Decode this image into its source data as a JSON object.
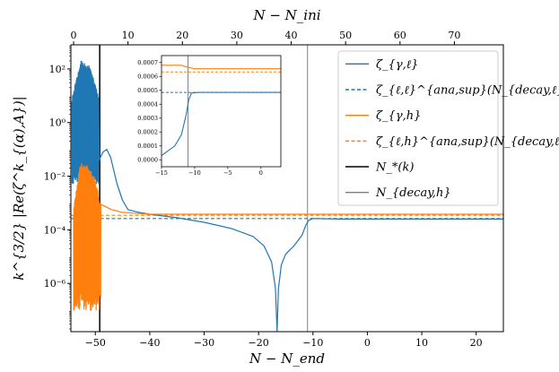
{
  "chart_data": {
    "type": "line",
    "xlabel": "N − N_end",
    "xlabel_top": "N − N_ini",
    "ylabel": "k^{3/2} |Re(ζ^k_{(α),A})|",
    "xlim": [
      -54.5,
      25
    ],
    "xlim_top": [
      -0.5,
      79
    ],
    "ylim_log10": [
      -7.8,
      2.9
    ],
    "y_scale": "log",
    "x_ticks": [
      -50,
      -40,
      -30,
      -20,
      -10,
      0,
      10,
      20
    ],
    "x_tick_labels": [
      "−50",
      "−40",
      "−30",
      "−20",
      "−10",
      "0",
      "10",
      "20"
    ],
    "x_ticks_top": [
      0,
      10,
      20,
      30,
      40,
      50,
      60,
      70
    ],
    "x_tick_labels_top": [
      "0",
      "10",
      "20",
      "30",
      "40",
      "50",
      "60",
      "70"
    ],
    "y_ticks_log10": [
      2,
      0,
      -2,
      -4,
      -6
    ],
    "y_tick_labels": [
      "10²",
      "10⁰",
      "10⁻²",
      "10⁻⁴",
      "10⁻⁶"
    ],
    "legend": {
      "placement": "top-right",
      "entries": [
        {
          "label": "ζ_{γ,ℓ}",
          "color": "#1f77b4",
          "style": "solid"
        },
        {
          "label": "ζ_{ℓ,ℓ}^{ana,sup}(N_{decay,ℓ})",
          "color": "#1f77b4",
          "style": "dashed"
        },
        {
          "label": "ζ_{γ,h}",
          "color": "#ff7f0e",
          "style": "solid"
        },
        {
          "label": "ζ_{ℓ,h}^{ana,sup}(N_{decay,ℓ})",
          "color": "#ff7f0e",
          "style": "dashed"
        },
        {
          "label": "N_*(k)",
          "color": "#000000",
          "style": "solid"
        },
        {
          "label": "N_{decay,h}",
          "color": "#808080",
          "style": "solid"
        }
      ]
    },
    "series": [
      {
        "name": "ζ_{γ,ℓ}",
        "color": "#1f77b4",
        "oscillating_segment": {
          "x_start": -54.3,
          "x_end": -49.4,
          "log10_upper": [
            1.0,
            2.3,
            2.1,
            1.0
          ],
          "log10_lower": -2.3
        },
        "points": [
          [
            -49.3,
            -1.4
          ],
          [
            -48.6,
            -1.1
          ],
          [
            -47.9,
            -1.0
          ],
          [
            -47.2,
            -1.3
          ],
          [
            -46.0,
            -2.3
          ],
          [
            -45.0,
            -2.9
          ],
          [
            -44.0,
            -3.25
          ],
          [
            -42.0,
            -3.35
          ],
          [
            -40.0,
            -3.42
          ],
          [
            -35.0,
            -3.55
          ],
          [
            -30.0,
            -3.72
          ],
          [
            -25.0,
            -3.95
          ],
          [
            -21.0,
            -4.25
          ],
          [
            -19.0,
            -4.6
          ],
          [
            -17.6,
            -5.2
          ],
          [
            -16.9,
            -6.2
          ],
          [
            -16.6,
            -7.8
          ],
          [
            -16.35,
            -6.2
          ],
          [
            -15.8,
            -5.3
          ],
          [
            -15.0,
            -4.9
          ],
          [
            -13.5,
            -4.6
          ],
          [
            -12.0,
            -4.2
          ],
          [
            -11.3,
            -3.82
          ],
          [
            -10.8,
            -3.65
          ],
          [
            -10.0,
            -3.58
          ],
          [
            -5.0,
            -3.6
          ],
          [
            0.0,
            -3.6
          ],
          [
            10.0,
            -3.6
          ],
          [
            25.0,
            -3.6
          ]
        ]
      },
      {
        "name": "ζ_{ℓ,ℓ}^{ana,sup}(N_{decay,ℓ})",
        "color": "#1f77b4",
        "dashed_log10_level": -3.58
      },
      {
        "name": "ζ_{γ,h}",
        "color": "#ff7f0e",
        "oscillating_segment": {
          "x_start": -54.0,
          "x_end": -49.0,
          "log10_upper": [
            -3.2,
            -1.5,
            -1.6,
            -2.0,
            -3.0
          ],
          "log10_lower": -7.0
        },
        "points": [
          [
            -49.0,
            -3.05
          ],
          [
            -47.0,
            -3.25
          ],
          [
            -45.0,
            -3.35
          ],
          [
            -43.0,
            -3.38
          ],
          [
            -40.0,
            -3.42
          ],
          [
            -20.0,
            -3.42
          ],
          [
            0.0,
            -3.42
          ],
          [
            25.0,
            -3.42
          ]
        ]
      },
      {
        "name": "ζ_{ℓ,h}^{ana,sup}(N_{decay,ℓ})",
        "color": "#ff7f0e",
        "dashed_log10_level": -3.46
      }
    ],
    "vertical_lines": [
      {
        "name": "N_*(k)",
        "x": -49.2,
        "color": "#000000"
      },
      {
        "name": "N_{decay,h}",
        "x": -11.0,
        "color": "#808080"
      }
    ],
    "inset": {
      "xlim": [
        -15,
        3
      ],
      "ylim": [
        -5e-05,
        0.00075
      ],
      "x_ticks": [
        -15,
        -10,
        -5,
        0
      ],
      "x_tick_labels": [
        "−15",
        "−10",
        "−5",
        "0"
      ],
      "y_ticks": [
        0.0,
        0.0001,
        0.0002,
        0.0003,
        0.0004,
        0.0005,
        0.0006,
        0.0007
      ],
      "y_tick_labels": [
        "0.0000",
        "0.0001",
        "0.0002",
        "0.0003",
        "0.0004",
        "0.0005",
        "0.0006",
        "0.0007"
      ],
      "vertical_line_x": -11,
      "series": [
        {
          "name": "ζ_{γ,ℓ}",
          "color": "#1f77b4",
          "points": [
            [
              -15,
              3e-05
            ],
            [
              -13,
              0.0001
            ],
            [
              -12,
              0.00018
            ],
            [
              -11.3,
              0.00032
            ],
            [
              -10.9,
              0.00043
            ],
            [
              -10.5,
              0.00048
            ],
            [
              -9.5,
              0.000485
            ],
            [
              0,
              0.000485
            ],
            [
              3,
              0.000485
            ]
          ]
        },
        {
          "name": "ζ_{ℓ,ℓ}^{ana,sup}",
          "color": "#1f77b4",
          "dashed": true,
          "level": 0.000485
        },
        {
          "name": "ζ_{γ,h}",
          "color": "#ff7f0e",
          "points": [
            [
              -15,
              0.00068
            ],
            [
              -12,
              0.00068
            ],
            [
              -11,
              0.000665
            ],
            [
              -10,
              0.000655
            ],
            [
              0,
              0.000655
            ],
            [
              3,
              0.000655
            ]
          ]
        },
        {
          "name": "ζ_{ℓ,h}^{ana,sup}",
          "color": "#ff7f0e",
          "dashed": true,
          "level": 0.000632
        }
      ]
    }
  }
}
